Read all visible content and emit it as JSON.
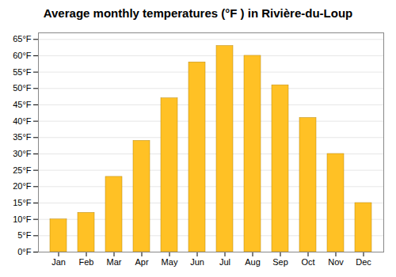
{
  "chart_data": {
    "type": "bar",
    "title": "Average monthly temperatures (°F ) in Rivière-du-Loup",
    "categories": [
      "Jan",
      "Feb",
      "Mar",
      "Apr",
      "May",
      "Jun",
      "Jul",
      "Aug",
      "Sep",
      "Oct",
      "Nov",
      "Dec"
    ],
    "values": [
      10.0,
      12.0,
      23.0,
      34.0,
      47.0,
      58.0,
      63.0,
      60.0,
      51.0,
      41.0,
      30.0,
      15.0
    ],
    "color": "#FFC125",
    "ylim": [
      0,
      67
    ],
    "yticks": [
      {
        "value": 0,
        "label": "0°F"
      },
      {
        "value": 5,
        "label": "5°F"
      },
      {
        "value": 10,
        "label": "10°F"
      },
      {
        "value": 15,
        "label": "15°F"
      },
      {
        "value": 20,
        "label": "20°F"
      },
      {
        "value": 25,
        "label": "25°F"
      },
      {
        "value": 30,
        "label": "30°F"
      },
      {
        "value": 35,
        "label": "35°F"
      },
      {
        "value": 40,
        "label": "40°F"
      },
      {
        "value": 45,
        "label": "45°F"
      },
      {
        "value": 50,
        "label": "50°F"
      },
      {
        "value": 55,
        "label": "55°F"
      },
      {
        "value": 60,
        "label": "60°F"
      },
      {
        "value": 65,
        "label": "65°F"
      }
    ],
    "grid": true
  }
}
